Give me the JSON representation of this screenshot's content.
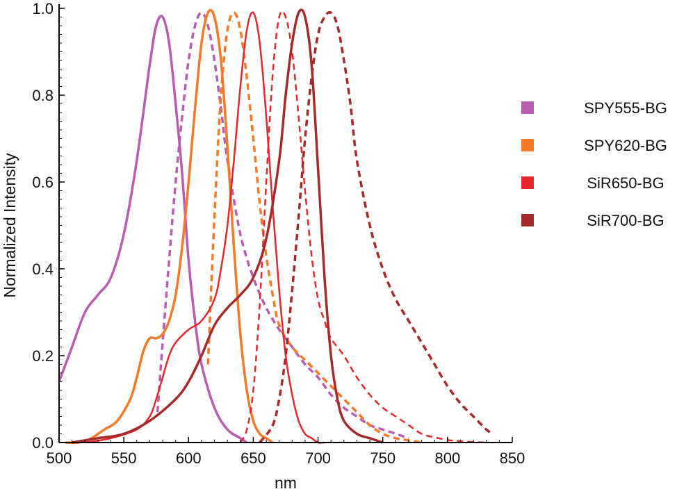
{
  "chart_data": {
    "type": "line",
    "xlabel": "nm",
    "ylabel": "Normalized Intensity",
    "xlim": [
      500,
      850
    ],
    "ylim": [
      0,
      1.0
    ],
    "x_ticks": [
      500,
      550,
      600,
      650,
      700,
      750,
      800,
      850
    ],
    "y_ticks": [
      0.0,
      0.2,
      0.4,
      0.6,
      0.8,
      1.0
    ],
    "x_tick_labels": [
      "500",
      "550",
      "600",
      "650",
      "700",
      "750",
      "800",
      "850"
    ],
    "y_tick_labels": [
      "0.0",
      "0.2",
      "0.4",
      "0.6",
      "0.8",
      "1.0"
    ],
    "grid": false,
    "legend_position": "right",
    "legend": [
      {
        "label": "SPY555-BG",
        "color": "#b85db0"
      },
      {
        "label": "SPY620-BG",
        "color": "#f47a2a"
      },
      {
        "label": "SiR650-BG",
        "color": "#e3282e"
      },
      {
        "label": "SiR700-BG",
        "color": "#a52a2a"
      }
    ],
    "series": [
      {
        "color": "#b85db0",
        "style": "solid",
        "width": 3.5,
        "x": [
          500,
          510,
          520,
          530,
          540,
          550,
          560,
          570,
          575,
          580,
          585,
          590,
          595,
          600,
          605,
          610,
          620,
          630,
          640,
          645
        ],
        "y": [
          0.14,
          0.22,
          0.3,
          0.34,
          0.38,
          0.48,
          0.65,
          0.87,
          0.96,
          0.98,
          0.92,
          0.78,
          0.62,
          0.42,
          0.28,
          0.18,
          0.08,
          0.03,
          0.01,
          0.0
        ]
      },
      {
        "color": "#b85db0",
        "style": "dashed",
        "width": 3.5,
        "x": [
          576,
          580,
          585,
          590,
          595,
          600,
          605,
          610,
          615,
          620,
          625,
          630,
          640,
          650,
          660,
          670,
          680,
          690,
          700,
          710,
          720,
          730,
          740,
          750,
          760,
          770
        ],
        "y": [
          0.07,
          0.23,
          0.42,
          0.6,
          0.75,
          0.88,
          0.96,
          0.99,
          0.96,
          0.88,
          0.77,
          0.65,
          0.48,
          0.38,
          0.31,
          0.26,
          0.22,
          0.18,
          0.15,
          0.11,
          0.08,
          0.06,
          0.04,
          0.03,
          0.02,
          0.01
        ]
      },
      {
        "color": "#f47a2a",
        "style": "solid",
        "width": 3.5,
        "x": [
          505,
          515,
          525,
          535,
          545,
          555,
          560,
          565,
          570,
          575,
          580,
          585,
          590,
          595,
          600,
          605,
          610,
          615,
          620,
          625,
          630,
          635,
          640,
          645,
          650,
          655,
          660,
          665
        ],
        "y": [
          0.0,
          0.0,
          0.01,
          0.03,
          0.05,
          0.1,
          0.15,
          0.21,
          0.24,
          0.24,
          0.25,
          0.28,
          0.34,
          0.45,
          0.6,
          0.77,
          0.92,
          0.99,
          0.98,
          0.88,
          0.68,
          0.45,
          0.25,
          0.12,
          0.05,
          0.02,
          0.01,
          0.0
        ]
      },
      {
        "color": "#f47a2a",
        "style": "dashed",
        "width": 3.5,
        "x": [
          615,
          620,
          625,
          630,
          635,
          640,
          645,
          650,
          655,
          660,
          665,
          670,
          680,
          690,
          700,
          710,
          720,
          730,
          740,
          750,
          760,
          770,
          780
        ],
        "y": [
          0.18,
          0.52,
          0.8,
          0.95,
          0.99,
          0.95,
          0.84,
          0.7,
          0.55,
          0.43,
          0.34,
          0.27,
          0.22,
          0.19,
          0.16,
          0.13,
          0.1,
          0.07,
          0.04,
          0.02,
          0.01,
          0.005,
          0.0
        ]
      },
      {
        "color": "#e3282e",
        "style": "solid",
        "width": 2.5,
        "x": [
          520,
          540,
          560,
          570,
          575,
          580,
          585,
          590,
          600,
          610,
          620,
          625,
          630,
          635,
          640,
          645,
          650,
          655,
          660,
          665,
          670,
          675,
          680,
          685,
          690,
          695,
          700,
          705
        ],
        "y": [
          0.0,
          0.01,
          0.03,
          0.06,
          0.1,
          0.15,
          0.2,
          0.23,
          0.26,
          0.28,
          0.33,
          0.4,
          0.5,
          0.65,
          0.82,
          0.95,
          0.99,
          0.92,
          0.75,
          0.54,
          0.35,
          0.2,
          0.11,
          0.05,
          0.02,
          0.01,
          0.0,
          0.0
        ]
      },
      {
        "color": "#e3282e",
        "style": "dashed",
        "width": 2.5,
        "x": [
          640,
          645,
          650,
          655,
          660,
          665,
          670,
          675,
          680,
          685,
          690,
          695,
          700,
          705,
          710,
          720,
          730,
          740,
          750,
          760,
          770,
          780,
          790,
          800,
          810,
          820,
          830
        ],
        "y": [
          0.0,
          0.03,
          0.12,
          0.32,
          0.6,
          0.85,
          0.98,
          0.98,
          0.9,
          0.75,
          0.58,
          0.43,
          0.33,
          0.28,
          0.24,
          0.2,
          0.15,
          0.11,
          0.08,
          0.06,
          0.04,
          0.02,
          0.012,
          0.006,
          0.003,
          0.001,
          0.0
        ]
      },
      {
        "color": "#a52a2a",
        "style": "solid",
        "width": 3.5,
        "x": [
          510,
          530,
          550,
          570,
          590,
          600,
          610,
          620,
          630,
          640,
          650,
          660,
          670,
          675,
          680,
          685,
          690,
          695,
          700,
          705,
          710,
          715,
          720,
          730,
          740,
          750
        ],
        "y": [
          0.0,
          0.01,
          0.02,
          0.05,
          0.1,
          0.14,
          0.2,
          0.27,
          0.31,
          0.34,
          0.38,
          0.47,
          0.65,
          0.8,
          0.92,
          0.99,
          0.98,
          0.87,
          0.63,
          0.38,
          0.2,
          0.1,
          0.05,
          0.02,
          0.01,
          0.0
        ]
      },
      {
        "color": "#a52a2a",
        "style": "dashed",
        "width": 3.5,
        "x": [
          655,
          665,
          670,
          675,
          680,
          685,
          690,
          695,
          700,
          705,
          710,
          715,
          720,
          725,
          730,
          740,
          750,
          760,
          770,
          780,
          790,
          800,
          810,
          820,
          830,
          835
        ],
        "y": [
          0.0,
          0.04,
          0.1,
          0.2,
          0.35,
          0.52,
          0.7,
          0.84,
          0.94,
          0.98,
          0.99,
          0.96,
          0.88,
          0.78,
          0.65,
          0.5,
          0.4,
          0.33,
          0.28,
          0.23,
          0.18,
          0.13,
          0.09,
          0.06,
          0.03,
          0.02
        ]
      }
    ]
  }
}
